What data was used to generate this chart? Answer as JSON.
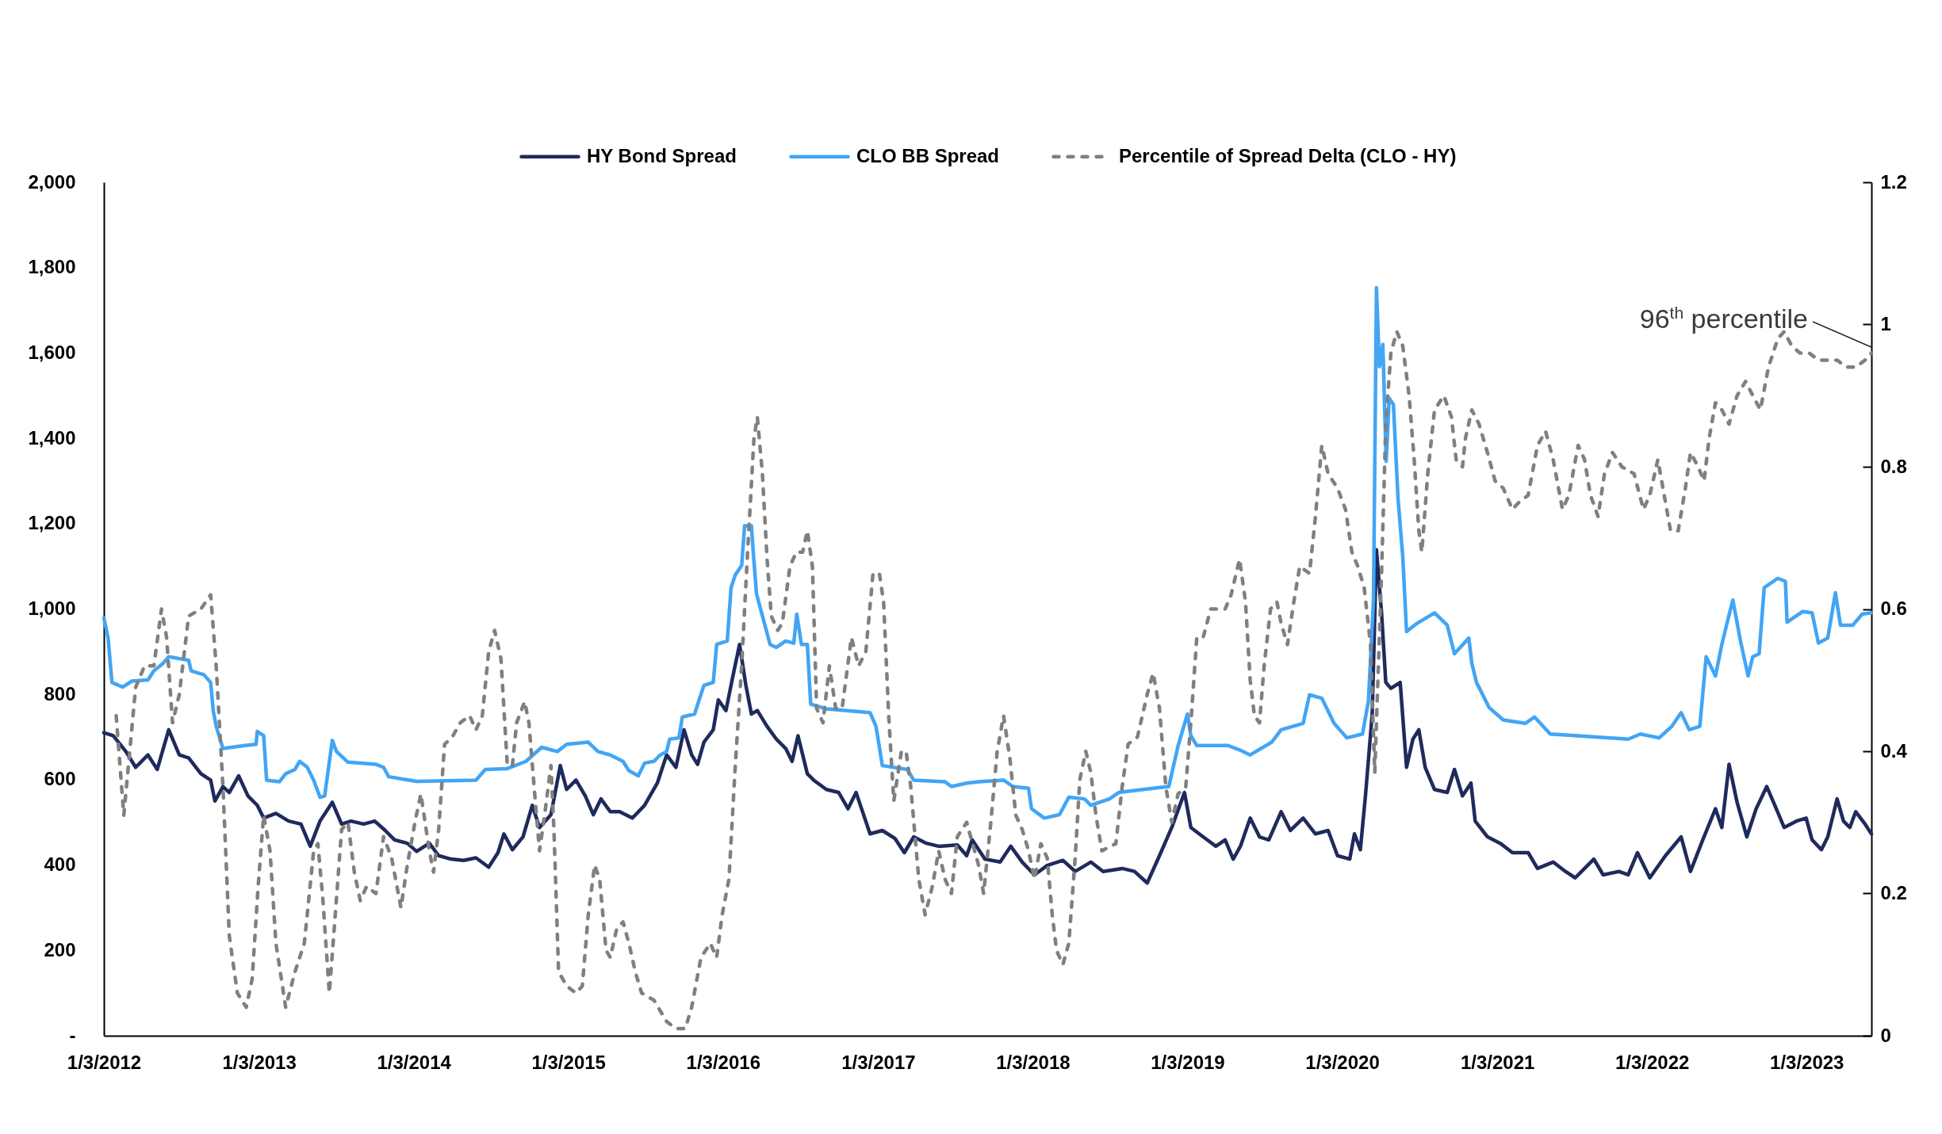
{
  "chart_data": {
    "type": "line",
    "legend": "top",
    "xlim": [
      "2012-01-03",
      "2023-06-05"
    ],
    "xticks": [
      {
        "value": "2012-01-03",
        "label": "1/3/2012"
      },
      {
        "value": "2013-01-03",
        "label": "1/3/2013"
      },
      {
        "value": "2014-01-03",
        "label": "1/3/2014"
      },
      {
        "value": "2015-01-03",
        "label": "1/3/2015"
      },
      {
        "value": "2016-01-03",
        "label": "1/3/2016"
      },
      {
        "value": "2017-01-03",
        "label": "1/3/2017"
      },
      {
        "value": "2018-01-03",
        "label": "1/3/2018"
      },
      {
        "value": "2019-01-03",
        "label": "1/3/2019"
      },
      {
        "value": "2020-01-03",
        "label": "1/3/2020"
      },
      {
        "value": "2021-01-03",
        "label": "1/3/2021"
      },
      {
        "value": "2022-01-03",
        "label": "1/3/2022"
      },
      {
        "value": "2023-01-03",
        "label": "1/3/2023"
      }
    ],
    "ylim": [
      0,
      2000
    ],
    "yticks": [
      {
        "value": 0,
        "label": "-"
      },
      200,
      400,
      600,
      800,
      {
        "value": 1000,
        "label": "1,000"
      },
      {
        "value": 1200,
        "label": "1,200"
      },
      {
        "value": 1400,
        "label": "1,400"
      },
      {
        "value": 1600,
        "label": "1,600"
      },
      {
        "value": 1800,
        "label": "1,800"
      },
      {
        "value": 2000,
        "label": "2,000"
      }
    ],
    "y2lim": [
      0,
      1.2
    ],
    "y2ticks": [
      0,
      0.2,
      0.4,
      0.6,
      0.8,
      1,
      1.2
    ],
    "annotations": [
      "96$^{th}$ percentile"
    ],
    "series": [
      {
        "name": "HY Bond Spread",
        "color": "#1f2a5c",
        "x": [
          "2012-01-03",
          "2012-01-25",
          "2012-02-24",
          "2012-03-18",
          "2012-04-16",
          "2012-05-08",
          "2012-06-04",
          "2012-06-29",
          "2012-07-21",
          "2012-08-19",
          "2012-09-11",
          "2012-09-21",
          "2012-10-10",
          "2012-10-25",
          "2012-11-16",
          "2012-12-08",
          "2012-12-30",
          "2013-01-14",
          "2013-02-12",
          "2013-03-14",
          "2013-04-12",
          "2013-05-04",
          "2013-05-27",
          "2013-06-25",
          "2013-07-17",
          "2013-08-08",
          "2013-09-07",
          "2013-10-03",
          "2013-10-28",
          "2013-11-19",
          "2013-12-19",
          "2014-01-10",
          "2014-02-09",
          "2014-03-03",
          "2014-04-01",
          "2014-05-01",
          "2014-05-30",
          "2014-06-29",
          "2014-07-21",
          "2014-08-04",
          "2014-08-24",
          "2014-09-18",
          "2014-10-10",
          "2014-10-27",
          "2014-11-23",
          "2014-12-15",
          "2014-12-30",
          "2015-01-21",
          "2015-02-12",
          "2015-03-03",
          "2015-03-21",
          "2015-04-12",
          "2015-05-04",
          "2015-06-03",
          "2015-07-02",
          "2015-08-01",
          "2015-08-23",
          "2015-09-14",
          "2015-10-03",
          "2015-10-21",
          "2015-11-04",
          "2015-11-19",
          "2015-12-11",
          "2015-12-23",
          "2016-01-10",
          "2016-01-25",
          "2016-02-11",
          "2016-02-26",
          "2016-03-10",
          "2016-03-24",
          "2016-04-16",
          "2016-05-08",
          "2016-05-30",
          "2016-06-14",
          "2016-06-28",
          "2016-07-20",
          "2016-08-04",
          "2016-09-03",
          "2016-10-02",
          "2016-10-24",
          "2016-11-12",
          "2016-12-15",
          "2017-01-13",
          "2017-02-12",
          "2017-03-06",
          "2017-03-28",
          "2017-04-27",
          "2017-05-26",
          "2017-07-09",
          "2017-07-31",
          "2017-08-13",
          "2017-09-12",
          "2017-10-18",
          "2017-11-12",
          "2017-12-09",
          "2018-01-07",
          "2018-02-06",
          "2018-03-15",
          "2018-04-13",
          "2018-05-20",
          "2018-06-18",
          "2018-08-02",
          "2018-08-31",
          "2018-09-30",
          "2018-10-29",
          "2018-11-27",
          "2018-12-27",
          "2019-01-11",
          "2019-02-09",
          "2019-03-11",
          "2019-04-02",
          "2019-04-21",
          "2019-05-08",
          "2019-05-31",
          "2019-06-22",
          "2019-07-14",
          "2019-08-12",
          "2019-09-03",
          "2019-10-03",
          "2019-11-01",
          "2019-12-01",
          "2019-12-23",
          "2020-01-21",
          "2020-02-01",
          "2020-02-15",
          "2020-02-27",
          "2020-03-14",
          "2020-03-24",
          "2020-04-05",
          "2020-04-15",
          "2020-04-27",
          "2020-05-19",
          "2020-06-03",
          "2020-06-18",
          "2020-07-02",
          "2020-07-17",
          "2020-08-08",
          "2020-09-07",
          "2020-09-24",
          "2020-10-13",
          "2020-11-02",
          "2020-11-12",
          "2020-12-11",
          "2021-01-10",
          "2021-02-08",
          "2021-03-17",
          "2021-04-08",
          "2021-05-15",
          "2021-06-13",
          "2021-07-06",
          "2021-08-19",
          "2021-09-10",
          "2021-10-17",
          "2021-11-08",
          "2021-11-30",
          "2021-12-29",
          "2022-02-04",
          "2022-03-13",
          "2022-04-04",
          "2022-05-03",
          "2022-06-02",
          "2022-06-17",
          "2022-07-04",
          "2022-07-23",
          "2022-08-15",
          "2022-09-06",
          "2022-10-01",
          "2022-10-20",
          "2022-11-11",
          "2022-12-10",
          "2023-01-02",
          "2023-01-16",
          "2023-02-07",
          "2023-02-22",
          "2023-03-16",
          "2023-03-31",
          "2023-04-15",
          "2023-04-29",
          "2023-05-21",
          "2023-06-05"
        ],
        "values": [
          710,
          703,
          666,
          629,
          658,
          624,
          717,
          658,
          651,
          614,
          599,
          550,
          584,
          570,
          609,
          562,
          540,
          510,
          521,
          503,
          496,
          444,
          503,
          547,
          496,
          503,
          496,
          503,
          481,
          459,
          451,
          432,
          451,
          422,
          414,
          411,
          417,
          395,
          429,
          473,
          436,
          466,
          540,
          488,
          518,
          633,
          577,
          599,
          562,
          518,
          555,
          525,
          525,
          510,
          540,
          592,
          658,
          629,
          717,
          658,
          636,
          688,
          717,
          787,
          762,
          836,
          917,
          821,
          754,
          762,
          725,
          695,
          673,
          643,
          703,
          614,
          599,
          577,
          570,
          532,
          570,
          473,
          481,
          462,
          429,
          466,
          451,
          444,
          447,
          422,
          459,
          414,
          407,
          444,
          407,
          377,
          399,
          411,
          385,
          407,
          385,
          392,
          385,
          358,
          422,
          488,
          570,
          488,
          466,
          444,
          459,
          414,
          444,
          510,
          466,
          459,
          525,
          481,
          510,
          473,
          481,
          422,
          414,
          473,
          436,
          562,
          754,
          1139,
          991,
          828,
          814,
          828,
          629,
          695,
          717,
          629,
          577,
          570,
          624,
          562,
          592,
          503,
          466,
          451,
          429,
          429,
          392,
          407,
          385,
          370,
          414,
          377,
          385,
          377,
          429,
          370,
          422,
          466,
          385,
          459,
          532,
          488,
          636,
          547,
          466,
          532,
          584,
          540,
          488,
          503,
          510,
          459,
          436,
          466,
          555,
          503,
          488,
          525,
          496,
          473
        ]
      },
      {
        "name": "CLO BB Spread",
        "color": "#42a5f5",
        "x": [
          "2012-01-03",
          "2012-01-13",
          "2012-01-22",
          "2012-02-16",
          "2012-03-09",
          "2012-04-16",
          "2012-04-30",
          "2012-05-22",
          "2012-06-04",
          "2012-07-21",
          "2012-07-27",
          "2012-08-26",
          "2012-09-11",
          "2012-09-17",
          "2012-09-24",
          "2012-10-10",
          "2012-12-01",
          "2012-12-27",
          "2012-12-30",
          "2013-01-14",
          "2013-01-21",
          "2013-02-20",
          "2013-03-07",
          "2013-03-29",
          "2013-04-09",
          "2013-04-27",
          "2013-05-12",
          "2013-05-27",
          "2013-06-07",
          "2013-06-25",
          "2013-07-05",
          "2013-08-01",
          "2013-10-06",
          "2013-10-24",
          "2013-11-05",
          "2014-01-10",
          "2014-05-30",
          "2014-06-21",
          "2014-08-12",
          "2014-09-25",
          "2014-11-01",
          "2014-12-08",
          "2014-12-30",
          "2015-02-19",
          "2015-03-14",
          "2015-04-12",
          "2015-05-12",
          "2015-05-26",
          "2015-06-17",
          "2015-07-02",
          "2015-07-24",
          "2015-08-08",
          "2015-08-23",
          "2015-08-30",
          "2015-09-21",
          "2015-09-29",
          "2015-10-28",
          "2015-11-09",
          "2015-11-19",
          "2015-12-11",
          "2015-12-19",
          "2016-01-13",
          "2016-01-22",
          "2016-02-01",
          "2016-02-16",
          "2016-02-23",
          "2016-03-10",
          "2016-03-14",
          "2016-03-22",
          "2016-04-05",
          "2016-04-23",
          "2016-05-08",
          "2016-05-30",
          "2016-06-18",
          "2016-06-25",
          "2016-07-06",
          "2016-07-20",
          "2016-07-28",
          "2016-09-03",
          "2016-12-15",
          "2016-12-29",
          "2017-01-13",
          "2017-03-13",
          "2017-03-28",
          "2017-06-10",
          "2017-06-25",
          "2017-07-31",
          "2017-08-28",
          "2017-10-26",
          "2017-11-17",
          "2017-12-24",
          "2017-12-31",
          "2018-01-30",
          "2018-03-07",
          "2018-03-29",
          "2018-05-05",
          "2018-05-20",
          "2018-07-03",
          "2018-07-25",
          "2018-10-14",
          "2018-11-20",
          "2018-12-12",
          "2019-01-03",
          "2019-01-11",
          "2019-01-25",
          "2019-04-09",
          "2019-05-08",
          "2019-05-31",
          "2019-07-21",
          "2019-08-12",
          "2019-10-03",
          "2019-10-18",
          "2019-11-16",
          "2019-12-15",
          "2020-01-14",
          "2020-02-20",
          "2020-03-05",
          "2020-03-17",
          "2020-03-24",
          "2020-03-31",
          "2020-04-08",
          "2020-04-16",
          "2020-04-23",
          "2020-05-03",
          "2020-05-14",
          "2020-05-25",
          "2020-06-03",
          "2020-06-24",
          "2020-08-08",
          "2020-09-07",
          "2020-09-24",
          "2020-10-28",
          "2020-11-04",
          "2020-11-15",
          "2020-12-15",
          "2021-01-17",
          "2021-03-10",
          "2021-04-01",
          "2021-05-08",
          "2021-07-13",
          "2021-11-08",
          "2021-12-07",
          "2022-01-20",
          "2022-02-19",
          "2022-03-13",
          "2022-04-01",
          "2022-04-26",
          "2022-05-11",
          "2022-06-02",
          "2022-06-17",
          "2022-06-28",
          "2022-07-13",
          "2022-07-31",
          "2022-08-18",
          "2022-08-29",
          "2022-09-13",
          "2022-09-25",
          "2022-10-27",
          "2022-11-14",
          "2022-11-18",
          "2022-12-25",
          "2023-01-16",
          "2023-01-31",
          "2023-02-22",
          "2023-03-12",
          "2023-03-24",
          "2023-04-22",
          "2023-05-14",
          "2023-06-05"
        ],
        "values": [
          979,
          932,
          828,
          817,
          831,
          834,
          855,
          873,
          888,
          880,
          855,
          846,
          828,
          762,
          725,
          673,
          680,
          683,
          713,
          703,
          599,
          595,
          614,
          624,
          643,
          629,
          599,
          559,
          562,
          692,
          666,
          641,
          636,
          629,
          607,
          596,
          599,
          624,
          626,
          643,
          676,
          666,
          683,
          688,
          666,
          658,
          643,
          621,
          609,
          639,
          643,
          658,
          666,
          695,
          698,
          747,
          754,
          791,
          821,
          828,
          917,
          925,
          1050,
          1080,
          1102,
          1195,
          1195,
          1139,
          1036,
          984,
          917,
          910,
          925,
          920,
          988,
          917,
          917,
          777,
          766,
          757,
          725,
          633,
          624,
          599,
          595,
          584,
          592,
          595,
          599,
          584,
          580,
          532,
          510,
          518,
          559,
          555,
          540,
          555,
          570,
          580,
          584,
          680,
          754,
          703,
          680,
          680,
          669,
          658,
          688,
          717,
          732,
          799,
          791,
          732,
          698,
          707,
          784,
          1021,
          1753,
          1568,
          1620,
          1346,
          1494,
          1479,
          1257,
          1124,
          947,
          964,
          991,
          962,
          895,
          932,
          873,
          828,
          769,
          740,
          732,
          747,
          707,
          703,
          695,
          707,
          698,
          725,
          757,
          717,
          725,
          888,
          843,
          917,
          962,
          1021,
          925,
          843,
          888,
          895,
          1050,
          1072,
          1065,
          969,
          994,
          991,
          920,
          932,
          1038,
          962,
          962,
          988,
          991
        ]
      },
      {
        "name": "Percentile of Spread Delta (CLO - HY)",
        "color": "#808080",
        "axis": "y2",
        "line_style": "dashed",
        "x": [
          "2012-02-01",
          "2012-02-19",
          "2012-03-18",
          "2012-04-08",
          "2012-04-30",
          "2012-05-18",
          "2012-05-30",
          "2012-06-13",
          "2012-06-29",
          "2012-07-21",
          "2012-08-19",
          "2012-09-11",
          "2012-09-24",
          "2012-10-10",
          "2012-10-25",
          "2012-11-13",
          "2012-12-04",
          "2012-12-18",
          "2013-01-01",
          "2013-01-14",
          "2013-01-29",
          "2013-02-12",
          "2013-03-07",
          "2013-03-29",
          "2013-04-20",
          "2013-05-12",
          "2013-05-22",
          "2013-06-03",
          "2013-06-18",
          "2013-07-02",
          "2013-07-17",
          "2013-08-01",
          "2013-08-16",
          "2013-08-30",
          "2013-09-14",
          "2013-10-06",
          "2013-10-24",
          "2013-11-12",
          "2013-12-04",
          "2013-12-19",
          "2014-01-06",
          "2014-01-20",
          "2014-02-09",
          "2014-02-19",
          "2014-03-03",
          "2014-03-17",
          "2014-04-04",
          "2014-04-23",
          "2014-05-15",
          "2014-05-30",
          "2014-06-14",
          "2014-06-29",
          "2014-07-13",
          "2014-07-28",
          "2014-08-12",
          "2014-08-24",
          "2014-09-03",
          "2014-09-22",
          "2014-10-02",
          "2014-10-17",
          "2014-10-27",
          "2014-11-08",
          "2014-11-23",
          "2014-11-30",
          "2014-12-11",
          "2014-12-30",
          "2015-01-21",
          "2015-02-05",
          "2015-02-19",
          "2015-03-06",
          "2015-03-18",
          "2015-04-02",
          "2015-04-12",
          "2015-04-27",
          "2015-05-12",
          "2015-05-26",
          "2015-06-10",
          "2015-06-25",
          "2015-07-24",
          "2015-08-23",
          "2015-09-14",
          "2015-10-06",
          "2015-10-21",
          "2015-11-12",
          "2015-12-04",
          "2015-12-19",
          "2016-01-01",
          "2016-01-17",
          "2016-02-01",
          "2016-02-16",
          "2016-03-01",
          "2016-03-16",
          "2016-03-24",
          "2016-04-05",
          "2016-04-16",
          "2016-04-26",
          "2016-05-11",
          "2016-05-22",
          "2016-06-09",
          "2016-06-24",
          "2016-07-09",
          "2016-07-20",
          "2016-08-01",
          "2016-08-11",
          "2016-08-26",
          "2016-09-10",
          "2016-09-25",
          "2016-10-10",
          "2016-11-01",
          "2016-11-18",
          "2016-12-05",
          "2016-12-22",
          "2017-01-06",
          "2017-01-16",
          "2017-01-28",
          "2017-02-09",
          "2017-02-27",
          "2017-03-10",
          "2017-03-21",
          "2017-04-09",
          "2017-04-24",
          "2017-05-11",
          "2017-05-26",
          "2017-06-10",
          "2017-06-25",
          "2017-07-09",
          "2017-07-31",
          "2017-08-28",
          "2017-09-09",
          "2017-09-26",
          "2017-10-11",
          "2017-10-26",
          "2017-11-10",
          "2017-11-24",
          "2017-12-09",
          "2017-12-24",
          "2018-01-07",
          "2018-01-22",
          "2018-02-06",
          "2018-02-18",
          "2018-02-28",
          "2018-03-15",
          "2018-03-29",
          "2018-04-13",
          "2018-04-24",
          "2018-05-08",
          "2018-05-20",
          "2018-06-01",
          "2018-06-15",
          "2018-07-18",
          "2018-08-02",
          "2018-08-16",
          "2018-09-07",
          "2018-09-30",
          "2018-10-14",
          "2018-10-29",
          "2018-11-13",
          "2018-11-27",
          "2018-12-12",
          "2018-12-30",
          "2019-01-11",
          "2019-01-25",
          "2019-02-09",
          "2019-02-27",
          "2019-03-18",
          "2019-04-02",
          "2019-04-16",
          "2019-05-06",
          "2019-05-20",
          "2019-05-31",
          "2019-06-10",
          "2019-06-22",
          "2019-07-03",
          "2019-07-18",
          "2019-08-02",
          "2019-08-12",
          "2019-08-27",
          "2019-09-11",
          "2019-09-25",
          "2019-10-18",
          "2019-11-01",
          "2019-11-16",
          "2019-12-01",
          "2019-12-23",
          "2020-01-11",
          "2020-01-26",
          "2020-02-09",
          "2020-02-24",
          "2020-03-10",
          "2020-03-20",
          "2020-04-05",
          "2020-04-15",
          "2020-04-27",
          "2020-05-11",
          "2020-05-25",
          "2020-06-09",
          "2020-06-21",
          "2020-07-02",
          "2020-07-09",
          "2020-07-23",
          "2020-08-08",
          "2020-08-30",
          "2020-09-17",
          "2020-09-28",
          "2020-10-13",
          "2020-10-20",
          "2020-11-04",
          "2020-11-21",
          "2020-12-11",
          "2020-12-29",
          "2021-01-17",
          "2021-02-08",
          "2021-02-23",
          "2021-03-17",
          "2021-04-08",
          "2021-04-27",
          "2021-05-15",
          "2021-06-06",
          "2021-06-21",
          "2021-07-13",
          "2021-07-28",
          "2021-08-11",
          "2021-08-29",
          "2021-09-13",
          "2021-10-02",
          "2021-10-24",
          "2021-11-22",
          "2021-12-14",
          "2021-12-29",
          "2022-01-17",
          "2022-02-01",
          "2022-02-16",
          "2022-03-06",
          "2022-03-23",
          "2022-04-04",
          "2022-04-22",
          "2022-05-06",
          "2022-05-18",
          "2022-06-02",
          "2022-06-17",
          "2022-07-04",
          "2022-07-23",
          "2022-08-12",
          "2022-08-29",
          "2022-09-16",
          "2022-10-05",
          "2022-10-27",
          "2022-11-11",
          "2022-11-29",
          "2022-12-18",
          "2023-01-09",
          "2023-01-31",
          "2023-02-22",
          "2023-03-16",
          "2023-04-07",
          "2023-04-29",
          "2023-05-21",
          "2023-06-05"
        ],
        "values": [
          0.45,
          0.31,
          0.49,
          0.52,
          0.52,
          0.6,
          0.56,
          0.44,
          0.48,
          0.59,
          0.6,
          0.62,
          0.52,
          0.35,
          0.14,
          0.06,
          0.04,
          0.08,
          0.21,
          0.31,
          0.26,
          0.13,
          0.04,
          0.09,
          0.13,
          0.26,
          0.27,
          0.19,
          0.06,
          0.17,
          0.29,
          0.3,
          0.23,
          0.19,
          0.21,
          0.2,
          0.28,
          0.25,
          0.18,
          0.24,
          0.3,
          0.34,
          0.26,
          0.23,
          0.29,
          0.41,
          0.42,
          0.44,
          0.45,
          0.43,
          0.45,
          0.54,
          0.57,
          0.53,
          0.38,
          0.38,
          0.44,
          0.47,
          0.44,
          0.33,
          0.26,
          0.31,
          0.38,
          0.29,
          0.09,
          0.07,
          0.06,
          0.07,
          0.17,
          0.24,
          0.22,
          0.12,
          0.11,
          0.15,
          0.16,
          0.13,
          0.09,
          0.06,
          0.05,
          0.02,
          0.01,
          0.01,
          0.04,
          0.11,
          0.13,
          0.11,
          0.17,
          0.22,
          0.38,
          0.52,
          0.68,
          0.84,
          0.87,
          0.79,
          0.67,
          0.59,
          0.57,
          0.58,
          0.66,
          0.68,
          0.68,
          0.71,
          0.66,
          0.46,
          0.44,
          0.52,
          0.46,
          0.46,
          0.56,
          0.52,
          0.54,
          0.65,
          0.65,
          0.61,
          0.45,
          0.33,
          0.4,
          0.4,
          0.35,
          0.22,
          0.17,
          0.21,
          0.26,
          0.22,
          0.2,
          0.28,
          0.3,
          0.24,
          0.2,
          0.3,
          0.4,
          0.45,
          0.39,
          0.31,
          0.29,
          0.26,
          0.22,
          0.27,
          0.25,
          0.17,
          0.12,
          0.1,
          0.13,
          0.25,
          0.36,
          0.4,
          0.37,
          0.31,
          0.26,
          0.27,
          0.35,
          0.41,
          0.42,
          0.48,
          0.51,
          0.46,
          0.35,
          0.3,
          0.34,
          0.35,
          0.44,
          0.56,
          0.56,
          0.6,
          0.6,
          0.6,
          0.62,
          0.67,
          0.61,
          0.5,
          0.45,
          0.44,
          0.52,
          0.6,
          0.61,
          0.58,
          0.55,
          0.61,
          0.66,
          0.65,
          0.73,
          0.83,
          0.79,
          0.77,
          0.74,
          0.68,
          0.66,
          0.63,
          0.55,
          0.37,
          0.65,
          0.86,
          0.96,
          0.99,
          0.97,
          0.9,
          0.81,
          0.71,
          0.68,
          0.79,
          0.88,
          0.9,
          0.87,
          0.81,
          0.8,
          0.84,
          0.88,
          0.86,
          0.82,
          0.78,
          0.77,
          0.74,
          0.75,
          0.76,
          0.83,
          0.85,
          0.81,
          0.74,
          0.76,
          0.83,
          0.81,
          0.76,
          0.73,
          0.79,
          0.82,
          0.8,
          0.79,
          0.74,
          0.76,
          0.81,
          0.76,
          0.71,
          0.71,
          0.77,
          0.82,
          0.8,
          0.78,
          0.84,
          0.89,
          0.88,
          0.86,
          0.9,
          0.92,
          0.9,
          0.88,
          0.94,
          0.98,
          0.99,
          0.97,
          0.96,
          0.96,
          0.95,
          0.95,
          0.95,
          0.94,
          0.94,
          0.95,
          0.96
        ]
      }
    ]
  }
}
